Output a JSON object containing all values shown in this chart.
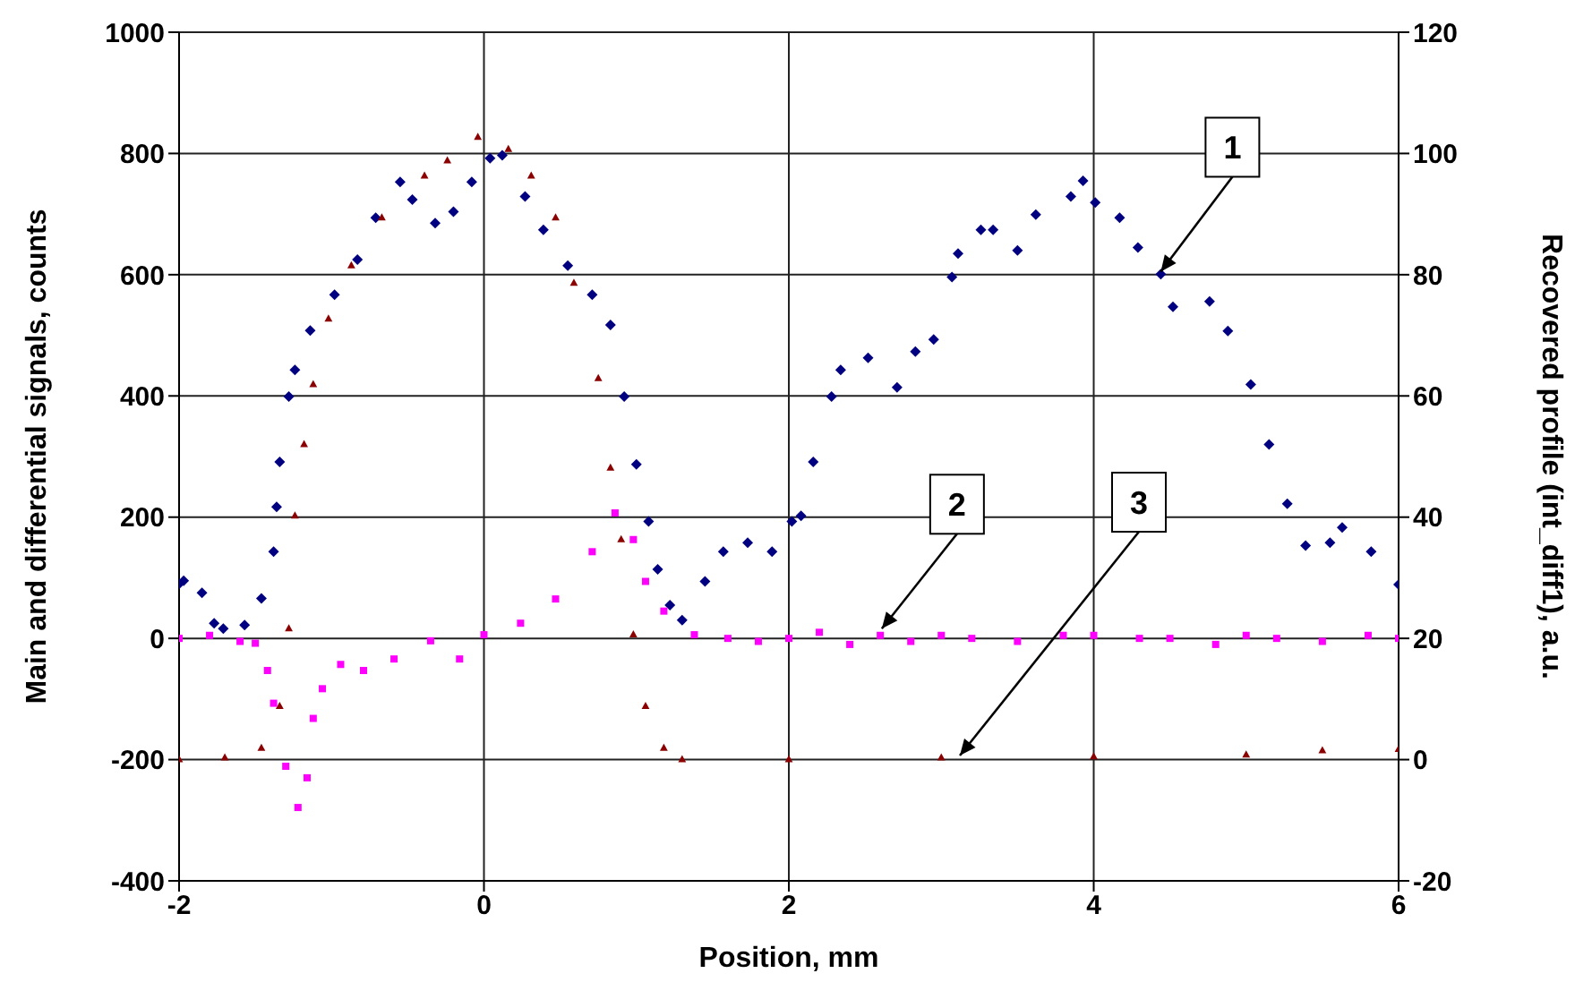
{
  "chart_data": {
    "type": "scatter",
    "xlabel": "Position, mm",
    "ylabel": "Main and differential signals, counts",
    "y2label": "Recovered profile (int_diff1), a.u.",
    "xlim": [
      -2,
      6
    ],
    "xticks": [
      -2,
      0,
      2,
      4,
      6
    ],
    "ylim": [
      -400,
      1000
    ],
    "yticks": [
      -400,
      -200,
      0,
      200,
      400,
      600,
      800,
      1000
    ],
    "y2lim": [
      -20,
      120
    ],
    "y2ticks": [
      -20,
      0,
      20,
      40,
      60,
      80,
      100,
      120
    ],
    "grid": true,
    "series": [
      {
        "color": "#000080",
        "marker": "diamond",
        "x": [
          -2.0,
          -1.97,
          -1.85,
          -1.77,
          -1.71,
          -1.57,
          -1.46,
          -1.38,
          -1.36,
          -1.34,
          -1.28,
          -1.24,
          -1.14,
          -0.98,
          -0.83,
          -0.71,
          -0.55,
          -0.47,
          -0.32,
          -0.2,
          -0.08,
          0.04,
          0.12,
          0.27,
          0.39,
          0.55,
          0.71,
          0.83,
          0.92,
          1.0,
          1.08,
          1.14,
          1.22,
          1.3,
          1.45,
          1.57,
          1.73,
          1.89,
          2.02,
          2.08,
          2.16,
          2.28,
          2.34,
          2.52,
          2.71,
          2.83,
          2.95,
          3.07,
          3.11,
          3.26,
          3.34,
          3.5,
          3.62,
          3.85,
          3.93,
          4.01,
          4.17,
          4.29,
          4.44,
          4.52,
          4.76,
          4.88,
          5.03,
          5.15,
          5.27,
          5.39,
          5.55,
          5.63,
          5.82,
          6.0
        ],
        "values": [
          90,
          95,
          75,
          25,
          16,
          22,
          66,
          143,
          217,
          291,
          399,
          443,
          508,
          567,
          625,
          694,
          753,
          724,
          685,
          704,
          753,
          792,
          797,
          729,
          674,
          615,
          567,
          517,
          399,
          287,
          193,
          114,
          55,
          30,
          94,
          143,
          158,
          143,
          193,
          202,
          291,
          399,
          443,
          463,
          414,
          473,
          493,
          596,
          635,
          674,
          674,
          640,
          699,
          729,
          755,
          719,
          694,
          645,
          601,
          547,
          556,
          507,
          419,
          320,
          222,
          153,
          158,
          183,
          143,
          89
        ]
      },
      {
        "color": "#ff00ff",
        "marker": "square",
        "x": [
          -2.0,
          -1.8,
          -1.6,
          -1.5,
          -1.42,
          -1.38,
          -1.3,
          -1.22,
          -1.16,
          -1.12,
          -1.06,
          -0.94,
          -0.79,
          -0.59,
          -0.35,
          -0.16,
          0.0,
          0.24,
          0.47,
          0.71,
          0.86,
          0.98,
          1.06,
          1.18,
          1.38,
          1.6,
          1.8,
          2.0,
          2.2,
          2.4,
          2.6,
          2.8,
          3.0,
          3.2,
          3.5,
          3.8,
          4.0,
          4.3,
          4.5,
          4.8,
          5.0,
          5.2,
          5.5,
          5.8,
          6.0
        ],
        "values": [
          0,
          5,
          -5,
          -8,
          -53,
          -107,
          -211,
          -279,
          -230,
          -132,
          -83,
          -43,
          -53,
          -34,
          -4,
          -34,
          6,
          25,
          65,
          143,
          207,
          163,
          94,
          45,
          6,
          0,
          -5,
          0,
          10,
          -10,
          5,
          -5,
          5,
          0,
          -5,
          5,
          5,
          0,
          0,
          -10,
          5,
          0,
          -5,
          5,
          0
        ]
      },
      {
        "color": "#8b0000",
        "marker": "triangle",
        "axis": "y2",
        "x": [
          -2.0,
          -1.7,
          -1.46,
          -1.34,
          -1.28,
          -1.24,
          -1.18,
          -1.12,
          -1.02,
          -0.87,
          -0.67,
          -0.39,
          -0.24,
          -0.04,
          0.16,
          0.31,
          0.47,
          0.59,
          0.75,
          0.83,
          0.9,
          0.98,
          1.06,
          1.18,
          1.3,
          2.0,
          3.0,
          4.0,
          5.0,
          5.5,
          6.0
        ],
        "values": [
          0,
          0.3,
          1.9,
          8.8,
          21.6,
          40.2,
          52,
          61.9,
          72.7,
          81.5,
          89.4,
          96.3,
          98.8,
          102.7,
          100.7,
          96.3,
          89.4,
          78.6,
          62.9,
          48.1,
          36.3,
          20.6,
          8.8,
          1.9,
          0,
          0,
          0.3,
          0.5,
          0.8,
          1.5,
          1.7
        ]
      }
    ],
    "annotations": [
      {
        "text": "1",
        "x": 4.44,
        "y": 605
      },
      {
        "text": "2",
        "x": 2.61,
        "y": 16
      },
      "3"
    ]
  }
}
